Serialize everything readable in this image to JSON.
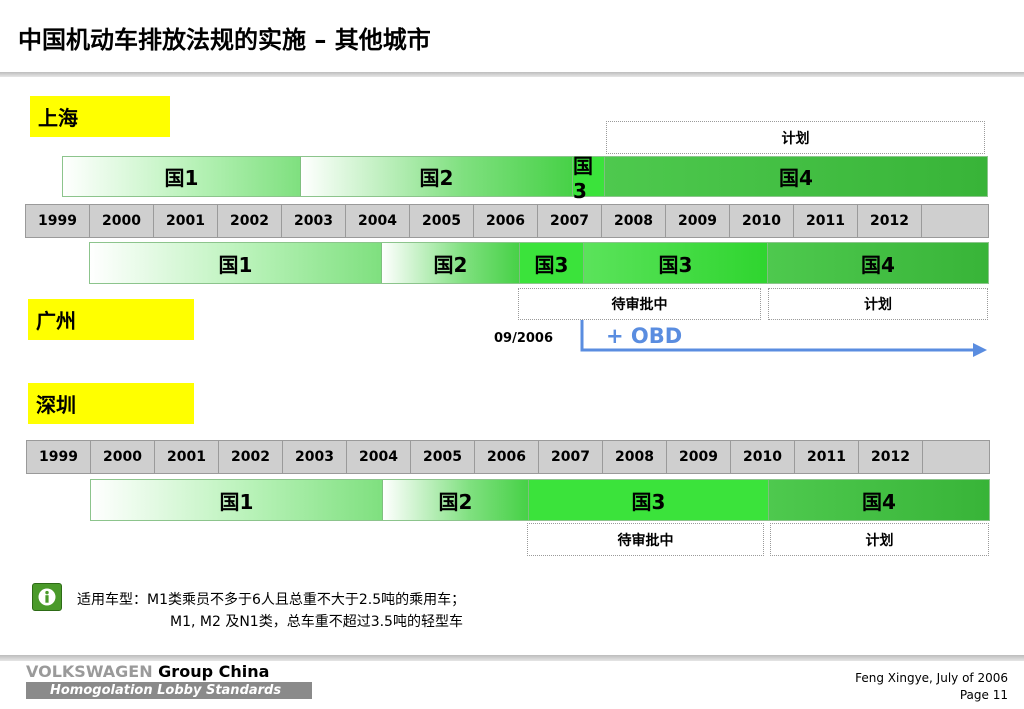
{
  "title": "中国机动车排放法规的实施 – 其他城市",
  "years": [
    "1999",
    "2000",
    "2001",
    "2002",
    "2003",
    "2004",
    "2005",
    "2006",
    "2007",
    "2008",
    "2009",
    "2010",
    "2011",
    "2012",
    ""
  ],
  "shanghai": {
    "city": "上海",
    "plan_label": "计划",
    "top_bar": [
      "国1",
      "国2",
      "国3",
      "国4"
    ],
    "bottom_bar": [
      "国1",
      "国2",
      "国3",
      "国3",
      "国4"
    ]
  },
  "guangzhou": {
    "city": "广州",
    "pending_label": "待审批中",
    "plan_label": "计划",
    "date": "09/2006",
    "obd_label": "+ OBD"
  },
  "shenzhen": {
    "city": "深圳",
    "bar": [
      "国1",
      "国2",
      "国3",
      "国4"
    ],
    "pending_label": "待审批中",
    "plan_label": "计划"
  },
  "info": {
    "line1": "适用车型：M1类乘员不多于6人且总重不大于2.5吨的乘用车；",
    "line2": "M1, M2 及N1类，总车重不超过3.5吨的轻型车"
  },
  "footer": {
    "brand": "VOLKSWAGEN",
    "group": "Group China",
    "subtitle": "Homogolation Lobby Standards",
    "author": "Feng Xingye, July of  2006",
    "page": "Page 11"
  },
  "colors": {
    "city_highlight": "#ffff00",
    "obd_blue": "#5a8de0",
    "info_icon": "#4a9a2a"
  },
  "icons": {
    "info": "info-icon",
    "arrow": "right-arrow-icon"
  }
}
